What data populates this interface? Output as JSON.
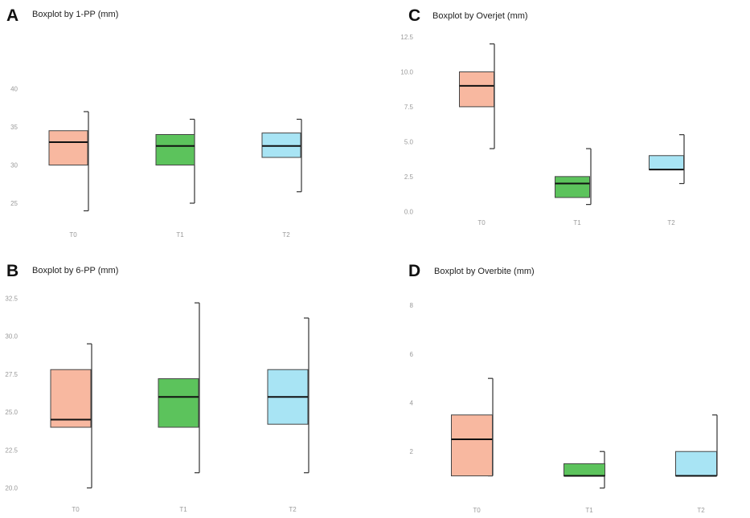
{
  "chart_data": [
    {
      "panel": "A",
      "type": "boxplot",
      "title": "Boxplot by 1-PP (mm)",
      "ylim": [
        23,
        47
      ],
      "yticks": [
        "25",
        "30",
        "35",
        "40"
      ],
      "categories": [
        "T0",
        "T1",
        "T2"
      ],
      "boxes": [
        {
          "category": "T0",
          "min": 24.0,
          "q1": 30.0,
          "median": 33.0,
          "q3": 34.5,
          "max": 37.0,
          "color": "#f8b8a0"
        },
        {
          "category": "T1",
          "min": 25.0,
          "q1": 30.0,
          "median": 32.5,
          "q3": 34.0,
          "max": 36.0,
          "color": "#5cc35c"
        },
        {
          "category": "T2",
          "min": 26.5,
          "q1": 31.0,
          "median": 32.5,
          "q3": 34.2,
          "max": 36.0,
          "color": "#a8e4f4"
        }
      ]
    },
    {
      "panel": "B",
      "type": "boxplot",
      "title": "Boxplot by 6-PP (mm)",
      "ylim": [
        19.5,
        33.0
      ],
      "yticks": [
        "20.0",
        "22.5",
        "25.0",
        "27.5",
        "30.0",
        "32.5"
      ],
      "categories": [
        "T0",
        "T1",
        "T2"
      ],
      "boxes": [
        {
          "category": "T0",
          "min": 20.0,
          "q1": 24.0,
          "median": 24.5,
          "q3": 27.8,
          "max": 29.5,
          "color": "#f8b8a0"
        },
        {
          "category": "T1",
          "min": 21.0,
          "q1": 24.0,
          "median": 26.0,
          "q3": 27.2,
          "max": 32.2,
          "color": "#5cc35c"
        },
        {
          "category": "T2",
          "min": 21.0,
          "q1": 24.2,
          "median": 26.0,
          "q3": 27.8,
          "max": 31.2,
          "color": "#a8e4f4"
        }
      ]
    },
    {
      "panel": "C",
      "type": "boxplot",
      "title": "Boxplot by Overjet (mm)",
      "ylim": [
        -0.5,
        12.5
      ],
      "yticks": [
        "0.0",
        "2.5",
        "5.0",
        "7.5",
        "10.0",
        "12.5"
      ],
      "categories": [
        "T0",
        "T1",
        "T2"
      ],
      "boxes": [
        {
          "category": "T0",
          "min": 4.5,
          "q1": 7.5,
          "median": 9.0,
          "q3": 10.0,
          "max": 12.0,
          "color": "#f8b8a0"
        },
        {
          "category": "T1",
          "min": 0.5,
          "q1": 1.0,
          "median": 2.0,
          "q3": 2.5,
          "max": 4.5,
          "color": "#5cc35c"
        },
        {
          "category": "T2",
          "min": 2.0,
          "q1": 3.0,
          "median": 3.0,
          "q3": 4.0,
          "max": 5.5,
          "color": "#a8e4f4"
        }
      ]
    },
    {
      "panel": "D",
      "type": "boxplot",
      "title": "Boxplot by Overbite (mm)",
      "ylim": [
        -0.3,
        8.4
      ],
      "yticks": [
        "2",
        "4",
        "6",
        "8"
      ],
      "categories": [
        "T0",
        "T1",
        "T2"
      ],
      "boxes": [
        {
          "category": "T0",
          "min": 1.0,
          "q1": 1.0,
          "median": 2.5,
          "q3": 3.5,
          "max": 5.0,
          "color": "#f8b8a0"
        },
        {
          "category": "T1",
          "min": 0.5,
          "q1": 1.0,
          "median": 1.0,
          "q3": 1.5,
          "max": 2.0,
          "color": "#5cc35c"
        },
        {
          "category": "T2",
          "min": 1.0,
          "q1": 1.0,
          "median": 1.0,
          "q3": 2.0,
          "max": 3.5,
          "color": "#a8e4f4"
        }
      ]
    }
  ]
}
